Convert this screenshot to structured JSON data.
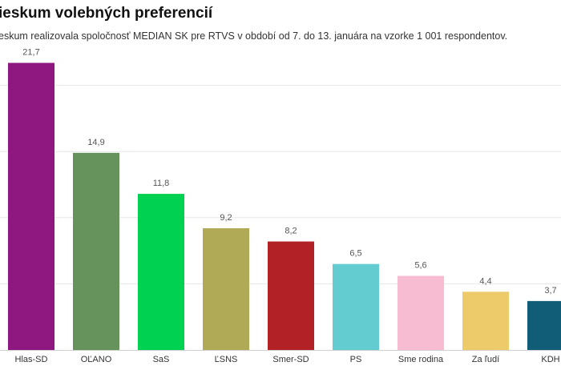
{
  "header": {
    "title": "ieskum volebných preferencií",
    "subtitle": "eskum realizovala spoločnosť MEDIAN SK pre RTVS v období od 7. do 13. januára na vzorke 1 001 respondentov."
  },
  "chart_data": {
    "type": "bar",
    "title": "ieskum volebných preferencií",
    "subtitle": "eskum realizovala spoločnosť MEDIAN SK pre RTVS v období od 7. do 13. januára na vzorke 1 001 respondentov.",
    "categories": [
      "Hlas-SD",
      "OĽANO",
      "SaS",
      "ĽSNS",
      "Smer-SD",
      "PS",
      "Sme rodina",
      "Za ľudí",
      "KDH"
    ],
    "values": [
      21.7,
      14.9,
      11.8,
      9.2,
      8.2,
      6.5,
      5.6,
      4.4,
      3.7
    ],
    "value_labels": [
      "21,7",
      "14,9",
      "11,8",
      "9,2",
      "8,2",
      "6,5",
      "5,6",
      "4,4",
      "3,7"
    ],
    "colors": [
      "#8e1780",
      "#66935c",
      "#00d150",
      "#b0a956",
      "#b22126",
      "#63ccd1",
      "#f7bcd1",
      "#eecb6a",
      "#115c76"
    ],
    "xlabel": "",
    "ylabel": "",
    "ylim": [
      0,
      25
    ],
    "grid": true
  }
}
